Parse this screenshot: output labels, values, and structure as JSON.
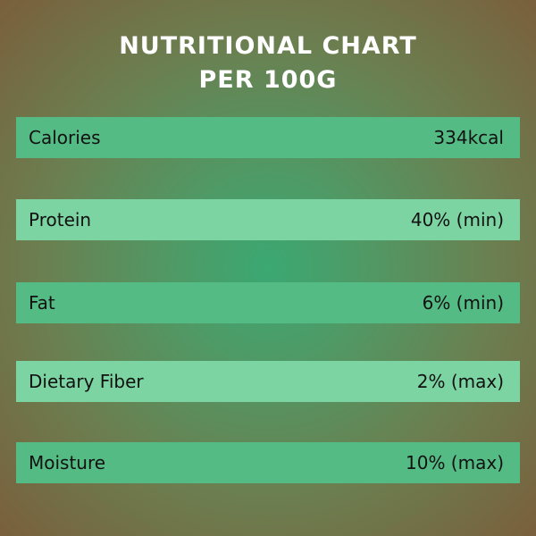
{
  "title": [
    "NUTRITIONAL CHART",
    "PER 100G"
  ],
  "rows": [
    [
      "Calories",
      "334kcal"
    ],
    [
      "Protein",
      "40% (min)"
    ],
    [
      "Fat",
      "6% (min)"
    ],
    [
      "Dietary Fiber",
      "2% (max)"
    ],
    [
      "Moisture",
      "10% (max)"
    ]
  ]
}
